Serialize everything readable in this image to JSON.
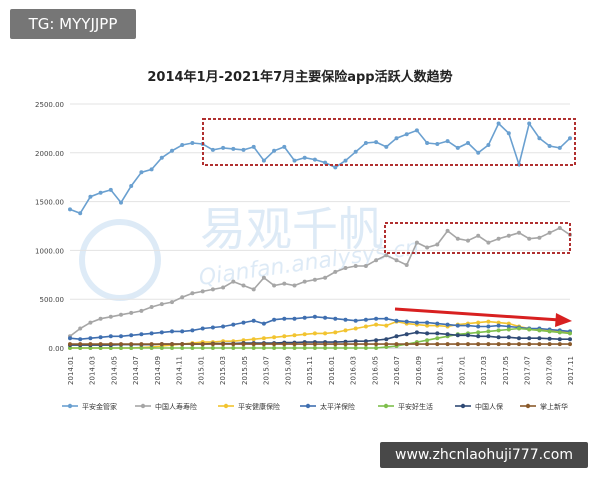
{
  "tag_label": "TG: MYYJJPP",
  "footer_url": "www.zhcnlaohuji777.com",
  "watermark": {
    "main": "易观千帆",
    "sub": "Qianfan.analysys.cn"
  },
  "chart_data": {
    "type": "line",
    "title": "2014年1月-2021年7月主要保险app活跃人数趋势",
    "xlabel": "",
    "ylabel": "",
    "ylim": [
      0,
      2500
    ],
    "yticks": [
      "0.00",
      "500.00",
      "1000.00",
      "1500.00",
      "2000.00",
      "2500.00"
    ],
    "grid": true,
    "legend_position": "bottom",
    "x_tick_labels": [
      "2014.01",
      "2014.03",
      "2014.05",
      "2014.07",
      "2014.09",
      "2014.11",
      "2015.01",
      "2015.03",
      "2015.05",
      "2015.07",
      "2015.09",
      "2015.11",
      "2016.01",
      "2016.03",
      "2016.05",
      "2016.07",
      "2016.09",
      "2016.11",
      "2017.01",
      "2017.03",
      "2017.05",
      "2017.07",
      "2017.09",
      "2017.11"
    ],
    "series": [
      {
        "name": "平安金管家",
        "color": "#6aa0d0",
        "marker": "circle",
        "values": [
          1420,
          1380,
          1550,
          1590,
          1620,
          1490,
          1660,
          1800,
          1830,
          1950,
          2020,
          2080,
          2100,
          2090,
          2030,
          2050,
          2040,
          2030,
          2060,
          1920,
          2020,
          2060,
          1920,
          1950,
          1930,
          1900,
          1850,
          1920,
          2010,
          2100,
          2110,
          2060,
          2150,
          2190,
          2230,
          2100,
          2090,
          2120,
          2050,
          2100,
          2000,
          2080,
          2300,
          2200,
          1880,
          2300,
          2150,
          2070,
          2050,
          2150
        ]
      },
      {
        "name": "中国人寿寿险",
        "color": "#a6a6a6",
        "marker": "circle",
        "values": [
          120,
          200,
          260,
          300,
          320,
          340,
          360,
          380,
          420,
          450,
          470,
          520,
          560,
          580,
          600,
          620,
          680,
          640,
          600,
          720,
          640,
          660,
          640,
          680,
          700,
          720,
          780,
          820,
          840,
          840,
          900,
          950,
          900,
          850,
          1080,
          1030,
          1060,
          1200,
          1120,
          1100,
          1150,
          1080,
          1120,
          1150,
          1180,
          1120,
          1130,
          1180,
          1230,
          1160
        ]
      },
      {
        "name": "平安健康保险",
        "color": "#f2c430",
        "marker": "circle",
        "values": [
          0,
          0,
          0,
          0,
          0,
          0,
          0,
          5,
          10,
          20,
          30,
          40,
          50,
          60,
          60,
          70,
          70,
          80,
          90,
          100,
          110,
          120,
          130,
          140,
          150,
          150,
          160,
          180,
          200,
          220,
          240,
          230,
          270,
          250,
          240,
          230,
          230,
          220,
          240,
          250,
          260,
          270,
          260,
          250,
          220,
          200,
          190,
          180,
          170,
          160
        ]
      },
      {
        "name": "太平洋保险",
        "color": "#3f6fb0",
        "marker": "circle",
        "values": [
          100,
          90,
          100,
          110,
          120,
          120,
          130,
          140,
          150,
          160,
          170,
          170,
          180,
          200,
          210,
          220,
          240,
          260,
          280,
          250,
          290,
          300,
          300,
          310,
          320,
          310,
          300,
          290,
          280,
          290,
          300,
          300,
          280,
          270,
          260,
          260,
          250,
          240,
          230,
          230,
          220,
          220,
          230,
          220,
          210,
          200,
          200,
          190,
          180,
          170
        ]
      },
      {
        "name": "平安好生活",
        "color": "#7fbf4d",
        "marker": "circle",
        "values": [
          0,
          0,
          0,
          0,
          0,
          0,
          0,
          0,
          0,
          0,
          0,
          0,
          0,
          0,
          0,
          0,
          0,
          0,
          0,
          0,
          0,
          0,
          0,
          0,
          0,
          0,
          0,
          0,
          0,
          0,
          0,
          10,
          20,
          40,
          60,
          80,
          100,
          120,
          140,
          150,
          160,
          170,
          180,
          190,
          200,
          190,
          180,
          170,
          160,
          150
        ]
      },
      {
        "name": "中国人保",
        "color": "#2f4a75",
        "marker": "circle",
        "values": [
          30,
          30,
          30,
          30,
          30,
          35,
          35,
          35,
          35,
          40,
          40,
          40,
          40,
          40,
          45,
          45,
          45,
          50,
          50,
          50,
          50,
          55,
          55,
          60,
          60,
          60,
          60,
          65,
          70,
          70,
          80,
          90,
          120,
          140,
          160,
          150,
          150,
          140,
          130,
          130,
          120,
          120,
          110,
          110,
          100,
          100,
          100,
          95,
          90,
          90
        ]
      },
      {
        "name": "掌上新华",
        "color": "#8a5a2b",
        "marker": "circle",
        "values": [
          40,
          40,
          40,
          40,
          40,
          40,
          40,
          40,
          40,
          40,
          40,
          40,
          40,
          40,
          40,
          40,
          40,
          40,
          40,
          40,
          40,
          40,
          40,
          40,
          40,
          40,
          40,
          40,
          40,
          40,
          40,
          40,
          40,
          40,
          40,
          40,
          40,
          40,
          40,
          40,
          40,
          40,
          40,
          40,
          40,
          40,
          40,
          40,
          40,
          40
        ]
      }
    ]
  }
}
